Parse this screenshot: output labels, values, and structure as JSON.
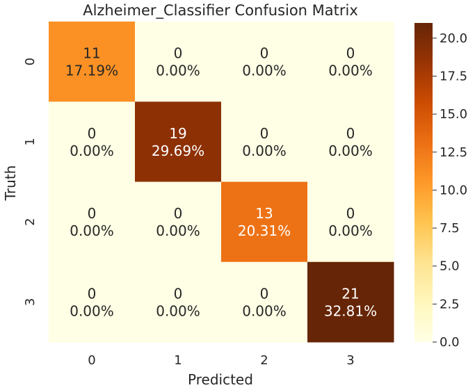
{
  "chart_data": {
    "type": "heatmap",
    "title": "Alzheimer_Classifier Confusion Matrix",
    "xlabel": "Predicted",
    "ylabel": "Truth",
    "x_categories": [
      "0",
      "1",
      "2",
      "3"
    ],
    "y_categories": [
      "0",
      "1",
      "2",
      "3"
    ],
    "counts": [
      [
        11,
        0,
        0,
        0
      ],
      [
        0,
        19,
        0,
        0
      ],
      [
        0,
        0,
        13,
        0
      ],
      [
        0,
        0,
        0,
        21
      ]
    ],
    "percentages": [
      [
        "17.19%",
        "0.00%",
        "0.00%",
        "0.00%"
      ],
      [
        "0.00%",
        "29.69%",
        "0.00%",
        "0.00%"
      ],
      [
        "0.00%",
        "0.00%",
        "20.31%",
        "0.00%"
      ],
      [
        "0.00%",
        "0.00%",
        "0.00%",
        "32.81%"
      ]
    ],
    "colormap": "YlOrBr",
    "color_range": [
      0,
      21
    ],
    "colorbar_ticks": [
      "0.0",
      "2.5",
      "5.0",
      "7.5",
      "10.0",
      "12.5",
      "15.0",
      "17.5",
      "20.0"
    ],
    "colorbar_tick_values": [
      0,
      2.5,
      5,
      7.5,
      10,
      12.5,
      15,
      17.5,
      20
    ]
  }
}
